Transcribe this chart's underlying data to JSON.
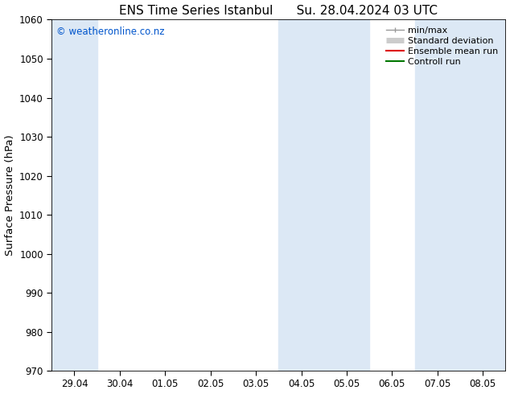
{
  "title_left": "ENS Time Series Istanbul",
  "title_right": "Su. 28.04.2024 03 UTC",
  "ylabel": "Surface Pressure (hPa)",
  "ylim": [
    970,
    1060
  ],
  "yticks": [
    970,
    980,
    990,
    1000,
    1010,
    1020,
    1030,
    1040,
    1050,
    1060
  ],
  "x_labels": [
    "29.04",
    "30.04",
    "01.05",
    "02.05",
    "03.05",
    "04.05",
    "05.05",
    "06.05",
    "07.05",
    "08.05"
  ],
  "background_color": "#ffffff",
  "plot_bg_color": "#ffffff",
  "shaded_band_color": "#dce8f5",
  "watermark_text": "© weatheronline.co.nz",
  "watermark_color": "#0055cc",
  "legend_items": [
    {
      "label": "min/max",
      "color": "#999999",
      "lw": 1.0
    },
    {
      "label": "Standard deviation",
      "color": "#cccccc",
      "lw": 5
    },
    {
      "label": "Ensemble mean run",
      "color": "#dd0000",
      "lw": 1.5
    },
    {
      "label": "Controll run",
      "color": "#007700",
      "lw": 1.5
    }
  ],
  "shaded_x_indices": [
    0,
    4,
    5,
    7,
    8
  ],
  "title_fontsize": 11,
  "tick_fontsize": 8.5,
  "ylabel_fontsize": 9.5,
  "legend_fontsize": 8
}
